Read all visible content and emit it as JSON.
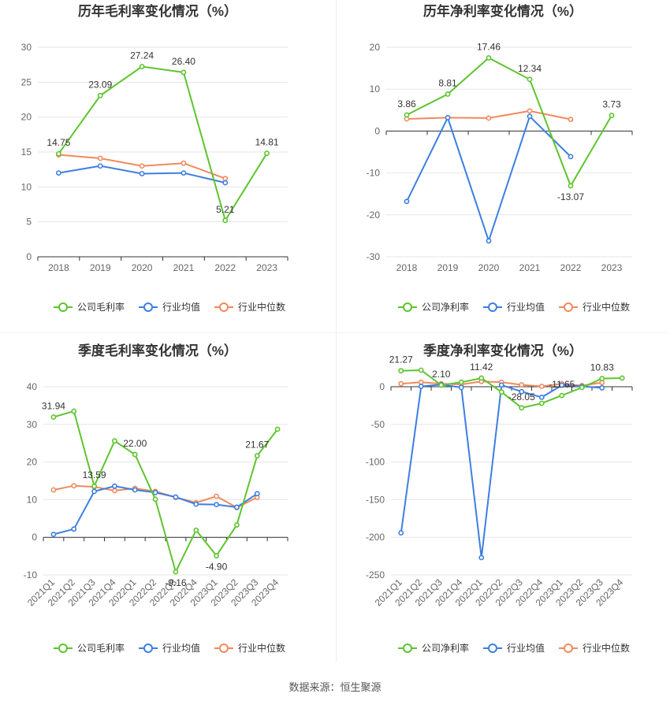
{
  "source_text": "数据来源：恒生聚源",
  "colors": {
    "company": "#5ec42e",
    "industry_avg": "#3d7fe0",
    "industry_median": "#f08a5d",
    "axis": "#333333",
    "grid": "#e6e6e6",
    "tick_text": "#666666"
  },
  "chart_data": [
    {
      "type": "line",
      "title": "历年毛利率变化情况（%）",
      "categories": [
        "2018",
        "2019",
        "2020",
        "2021",
        "2022",
        "2023"
      ],
      "ylim": [
        0,
        30
      ],
      "yticks": [
        0,
        5,
        10,
        15,
        20,
        25,
        30
      ],
      "rotate_x": false,
      "label_series": 0,
      "series": [
        {
          "name": "公司毛利率",
          "values": [
            14.75,
            23.09,
            27.24,
            26.4,
            5.21,
            14.81
          ],
          "labels": [
            "14.75",
            "23.09",
            "27.24",
            "26.40",
            "5.21",
            "14.81"
          ]
        },
        {
          "name": "行业均值",
          "values": [
            12.0,
            13.0,
            11.9,
            12.0,
            10.6,
            null
          ]
        },
        {
          "name": "行业中位数",
          "values": [
            14.6,
            14.1,
            13.0,
            13.4,
            11.2,
            null
          ]
        }
      ],
      "legend": [
        "公司毛利率",
        "行业均值",
        "行业中位数"
      ],
      "grid": true,
      "legend_position": "bottom"
    },
    {
      "type": "line",
      "title": "历年净利率变化情况（%）",
      "categories": [
        "2018",
        "2019",
        "2020",
        "2021",
        "2022",
        "2023"
      ],
      "ylim": [
        -30,
        20
      ],
      "yticks": [
        -30,
        -20,
        -10,
        0,
        10,
        20
      ],
      "rotate_x": false,
      "label_series": 0,
      "series": [
        {
          "name": "公司净利率",
          "values": [
            3.86,
            8.81,
            17.46,
            12.34,
            -13.07,
            3.73
          ],
          "labels": [
            "3.86",
            "8.81",
            "17.46",
            "12.34",
            "-13.07",
            "3.73"
          ]
        },
        {
          "name": "行业均值",
          "values": [
            -16.8,
            3.2,
            -26.2,
            3.5,
            -6.1,
            null
          ]
        },
        {
          "name": "行业中位数",
          "values": [
            2.9,
            3.2,
            3.1,
            4.8,
            2.8,
            null
          ]
        }
      ],
      "legend": [
        "公司净利率",
        "行业均值",
        "行业中位数"
      ],
      "grid": true,
      "legend_position": "bottom"
    },
    {
      "type": "line",
      "title": "季度毛利率变化情况（%）",
      "categories": [
        "2021Q1",
        "2021Q2",
        "2021Q3",
        "2021Q4",
        "2022Q1",
        "2022Q2",
        "2022Q3",
        "2022Q4",
        "2023Q1",
        "2023Q2",
        "2023Q3",
        "2023Q4"
      ],
      "ylim": [
        -10,
        40
      ],
      "yticks": [
        -10,
        0,
        10,
        20,
        30,
        40
      ],
      "rotate_x": true,
      "label_series": 0,
      "series": [
        {
          "name": "公司毛利率",
          "values": [
            31.94,
            33.5,
            13.59,
            25.6,
            22.0,
            10.1,
            -9.16,
            1.9,
            -4.9,
            3.3,
            21.67,
            28.7
          ],
          "labels": [
            "31.94",
            "",
            "13.59",
            "",
            "22.00",
            "",
            "-9.16",
            "",
            "-4.90",
            "",
            "21.67",
            ""
          ]
        },
        {
          "name": "行业均值",
          "values": [
            0.8,
            2.2,
            12.2,
            13.6,
            12.6,
            11.9,
            10.7,
            8.8,
            8.7,
            8.0,
            11.6,
            null
          ]
        },
        {
          "name": "行业中位数",
          "values": [
            12.6,
            13.7,
            13.4,
            12.4,
            13.0,
            12.2,
            10.6,
            9.2,
            10.9,
            7.9,
            10.6,
            null
          ]
        }
      ],
      "legend": [
        "公司毛利率",
        "行业均值",
        "行业中位数"
      ],
      "grid": true,
      "legend_position": "bottom"
    },
    {
      "type": "line",
      "title": "季度净利率变化情况（%）",
      "categories": [
        "2021Q1",
        "2021Q2",
        "2021Q3",
        "2021Q4",
        "2022Q1",
        "2022Q2",
        "2022Q3",
        "2022Q4",
        "2023Q1",
        "2023Q2",
        "2023Q3",
        "2023Q4"
      ],
      "ylim": [
        -250,
        0
      ],
      "yticks": [
        -250,
        -200,
        -150,
        -100,
        -50,
        0
      ],
      "rotate_x": true,
      "label_series": 0,
      "series": [
        {
          "name": "公司净利率",
          "values": [
            21.27,
            22.0,
            2.1,
            6.0,
            11.42,
            -7.0,
            -28.05,
            -22.0,
            -11.65,
            -1.0,
            10.83,
            11.5
          ],
          "labels": [
            "21.27",
            "",
            "2.10",
            "",
            "11.42",
            "",
            "-28.05",
            "",
            "-11.65",
            "",
            "10.83",
            ""
          ]
        },
        {
          "name": "行业均值",
          "values": [
            -194.0,
            0.5,
            2.8,
            -1.0,
            -227.0,
            2.2,
            -6.5,
            -14.0,
            2.0,
            0.5,
            -1.5,
            null
          ]
        },
        {
          "name": "行业中位数",
          "values": [
            4.0,
            6.0,
            4.0,
            3.0,
            7.0,
            6.0,
            2.5,
            0.5,
            4.0,
            1.5,
            5.5,
            null
          ]
        }
      ],
      "legend": [
        "公司净利率",
        "行业均值",
        "行业中位数"
      ],
      "grid": true,
      "legend_position": "bottom"
    }
  ]
}
